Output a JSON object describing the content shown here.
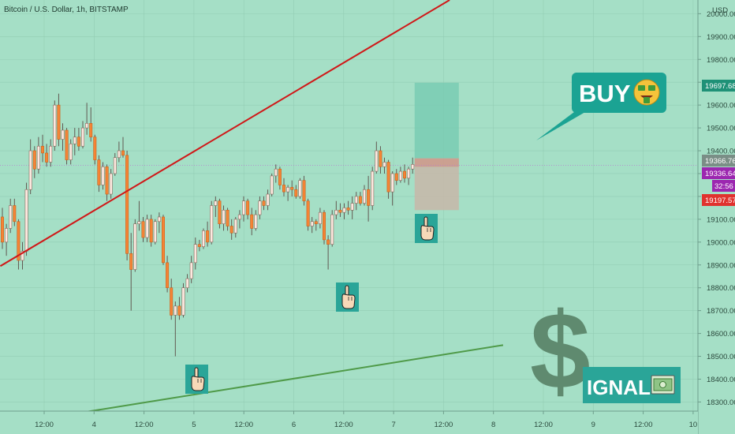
{
  "chart_title": "Bitcoin / U.S. Dollar, 1h, BITSTAMP",
  "currency_label": "USD",
  "price_tags": {
    "target": "19697.68",
    "last": "19366.76",
    "current": "19336.64",
    "countdown": "32:56",
    "stop": "19197.57"
  },
  "buy_bubble": {
    "text": "BUY"
  },
  "signal_badge": {
    "dollar": "$",
    "text": "IGNAL"
  },
  "colors": {
    "background": "#a5dfc6",
    "up_candle": "#fde8df",
    "down_candle": "#f58435",
    "resistance_line": "#d01818",
    "support_line": "#4f9a48",
    "target_zone": "#74c9b0",
    "stop_zone": "#c7b7a8",
    "bubble": "#1ba393",
    "dollar_sign": "#5f8a6f",
    "tag_target": "#1f9177",
    "tag_last": "#7a8e86",
    "tag_current": "#9c27b0",
    "tag_stop": "#e0322e"
  },
  "annotations": [
    "pointing-hand-icon",
    "pointing-hand-icon",
    "pointing-hand-icon",
    "money-face-icon",
    "banknote-icon"
  ],
  "chart_data": {
    "type": "candlestick",
    "title": "Bitcoin / U.S. Dollar, 1h, BITSTAMP",
    "y_axis_label": "USD",
    "y_ticks": [
      "20000.00",
      "19900.00",
      "19800.00",
      "19700.00",
      "19600.00",
      "19500.00",
      "19400.00",
      "19300.00",
      "19200.00",
      "19100.00",
      "19000.00",
      "18900.00",
      "18800.00",
      "18700.00",
      "18600.00",
      "18500.00",
      "18400.00",
      "18300.00"
    ],
    "x_ticks": [
      "12:00",
      "4",
      "12:00",
      "5",
      "12:00",
      "6",
      "12:00",
      "7",
      "12:00",
      "8",
      "12:00",
      "9",
      "12:00",
      "10"
    ],
    "ylim": [
      18260,
      20060
    ],
    "candles": [
      {
        "o": 19110,
        "h": 19150,
        "l": 18970,
        "c": 19000
      },
      {
        "o": 19000,
        "h": 19080,
        "l": 18940,
        "c": 19060
      },
      {
        "o": 19060,
        "h": 19190,
        "l": 19040,
        "c": 19160
      },
      {
        "o": 19160,
        "h": 19190,
        "l": 19070,
        "c": 19090
      },
      {
        "o": 19090,
        "h": 19100,
        "l": 18880,
        "c": 18920
      },
      {
        "o": 18920,
        "h": 19000,
        "l": 18880,
        "c": 18960
      },
      {
        "o": 18960,
        "h": 19260,
        "l": 18940,
        "c": 19230
      },
      {
        "o": 19230,
        "h": 19450,
        "l": 19210,
        "c": 19400
      },
      {
        "o": 19400,
        "h": 19420,
        "l": 19280,
        "c": 19320
      },
      {
        "o": 19320,
        "h": 19460,
        "l": 19300,
        "c": 19420
      },
      {
        "o": 19420,
        "h": 19470,
        "l": 19350,
        "c": 19390
      },
      {
        "o": 19390,
        "h": 19430,
        "l": 19330,
        "c": 19350
      },
      {
        "o": 19350,
        "h": 19450,
        "l": 19330,
        "c": 19420
      },
      {
        "o": 19420,
        "h": 19620,
        "l": 19400,
        "c": 19600
      },
      {
        "o": 19600,
        "h": 19650,
        "l": 19420,
        "c": 19450
      },
      {
        "o": 19450,
        "h": 19520,
        "l": 19400,
        "c": 19490
      },
      {
        "o": 19490,
        "h": 19500,
        "l": 19340,
        "c": 19360
      },
      {
        "o": 19360,
        "h": 19450,
        "l": 19340,
        "c": 19430
      },
      {
        "o": 19430,
        "h": 19500,
        "l": 19380,
        "c": 19460
      },
      {
        "o": 19460,
        "h": 19500,
        "l": 19400,
        "c": 19420
      },
      {
        "o": 19420,
        "h": 19530,
        "l": 19410,
        "c": 19500
      },
      {
        "o": 19500,
        "h": 19610,
        "l": 19470,
        "c": 19520
      },
      {
        "o": 19520,
        "h": 19590,
        "l": 19440,
        "c": 19460
      },
      {
        "o": 19460,
        "h": 19470,
        "l": 19340,
        "c": 19360
      },
      {
        "o": 19360,
        "h": 19380,
        "l": 19220,
        "c": 19250
      },
      {
        "o": 19250,
        "h": 19350,
        "l": 19230,
        "c": 19330
      },
      {
        "o": 19330,
        "h": 19340,
        "l": 19180,
        "c": 19210
      },
      {
        "o": 19210,
        "h": 19320,
        "l": 19190,
        "c": 19300
      },
      {
        "o": 19300,
        "h": 19390,
        "l": 19290,
        "c": 19370
      },
      {
        "o": 19370,
        "h": 19440,
        "l": 19350,
        "c": 19400
      },
      {
        "o": 19400,
        "h": 19460,
        "l": 19370,
        "c": 19380
      },
      {
        "o": 19380,
        "h": 19400,
        "l": 18920,
        "c": 18950
      },
      {
        "o": 18950,
        "h": 19040,
        "l": 18700,
        "c": 18880
      },
      {
        "o": 18880,
        "h": 19100,
        "l": 18870,
        "c": 19080
      },
      {
        "o": 19080,
        "h": 19180,
        "l": 19050,
        "c": 19090
      },
      {
        "o": 19090,
        "h": 19110,
        "l": 19000,
        "c": 19020
      },
      {
        "o": 19020,
        "h": 19120,
        "l": 19000,
        "c": 19100
      },
      {
        "o": 19100,
        "h": 19120,
        "l": 18980,
        "c": 19000
      },
      {
        "o": 19000,
        "h": 19100,
        "l": 18990,
        "c": 19090
      },
      {
        "o": 19090,
        "h": 19130,
        "l": 19040,
        "c": 19110
      },
      {
        "o": 19110,
        "h": 19120,
        "l": 18900,
        "c": 18910
      },
      {
        "o": 18910,
        "h": 18940,
        "l": 18780,
        "c": 18800
      },
      {
        "o": 18800,
        "h": 18840,
        "l": 18660,
        "c": 18680
      },
      {
        "o": 18680,
        "h": 18740,
        "l": 18500,
        "c": 18720
      },
      {
        "o": 18720,
        "h": 18760,
        "l": 18660,
        "c": 18680
      },
      {
        "o": 18680,
        "h": 18820,
        "l": 18670,
        "c": 18800
      },
      {
        "o": 18800,
        "h": 18860,
        "l": 18780,
        "c": 18840
      },
      {
        "o": 18840,
        "h": 18940,
        "l": 18820,
        "c": 18910
      },
      {
        "o": 18910,
        "h": 19020,
        "l": 18880,
        "c": 18990
      },
      {
        "o": 18990,
        "h": 19010,
        "l": 18960,
        "c": 18980
      },
      {
        "o": 18980,
        "h": 19060,
        "l": 18970,
        "c": 19050
      },
      {
        "o": 19050,
        "h": 19090,
        "l": 18980,
        "c": 19000
      },
      {
        "o": 19000,
        "h": 19180,
        "l": 18990,
        "c": 19160
      },
      {
        "o": 19160,
        "h": 19200,
        "l": 19110,
        "c": 19180
      },
      {
        "o": 19180,
        "h": 19190,
        "l": 19060,
        "c": 19080
      },
      {
        "o": 19080,
        "h": 19160,
        "l": 19050,
        "c": 19140
      },
      {
        "o": 19140,
        "h": 19150,
        "l": 19050,
        "c": 19070
      },
      {
        "o": 19070,
        "h": 19100,
        "l": 19010,
        "c": 19040
      },
      {
        "o": 19040,
        "h": 19110,
        "l": 19020,
        "c": 19100
      },
      {
        "o": 19100,
        "h": 19140,
        "l": 19060,
        "c": 19120
      },
      {
        "o": 19120,
        "h": 19200,
        "l": 19090,
        "c": 19180
      },
      {
        "o": 19180,
        "h": 19190,
        "l": 19100,
        "c": 19120
      },
      {
        "o": 19120,
        "h": 19150,
        "l": 19030,
        "c": 19060
      },
      {
        "o": 19060,
        "h": 19140,
        "l": 19050,
        "c": 19120
      },
      {
        "o": 19120,
        "h": 19200,
        "l": 19100,
        "c": 19180
      },
      {
        "o": 19180,
        "h": 19200,
        "l": 19140,
        "c": 19160
      },
      {
        "o": 19160,
        "h": 19230,
        "l": 19140,
        "c": 19210
      },
      {
        "o": 19210,
        "h": 19300,
        "l": 19200,
        "c": 19290
      },
      {
        "o": 19290,
        "h": 19340,
        "l": 19260,
        "c": 19320
      },
      {
        "o": 19320,
        "h": 19330,
        "l": 19230,
        "c": 19250
      },
      {
        "o": 19250,
        "h": 19280,
        "l": 19200,
        "c": 19220
      },
      {
        "o": 19220,
        "h": 19250,
        "l": 19180,
        "c": 19240
      },
      {
        "o": 19240,
        "h": 19270,
        "l": 19200,
        "c": 19230
      },
      {
        "o": 19230,
        "h": 19250,
        "l": 19190,
        "c": 19200
      },
      {
        "o": 19200,
        "h": 19280,
        "l": 19190,
        "c": 19270
      },
      {
        "o": 19270,
        "h": 19290,
        "l": 19160,
        "c": 19180
      },
      {
        "o": 19180,
        "h": 19190,
        "l": 19050,
        "c": 19070
      },
      {
        "o": 19070,
        "h": 19110,
        "l": 19040,
        "c": 19090
      },
      {
        "o": 19090,
        "h": 19100,
        "l": 19050,
        "c": 19080
      },
      {
        "o": 19080,
        "h": 19150,
        "l": 19060,
        "c": 19130
      },
      {
        "o": 19130,
        "h": 19140,
        "l": 18990,
        "c": 19010
      },
      {
        "o": 19010,
        "h": 19030,
        "l": 18880,
        "c": 18990
      },
      {
        "o": 18990,
        "h": 19140,
        "l": 18980,
        "c": 19120
      },
      {
        "o": 19120,
        "h": 19180,
        "l": 19100,
        "c": 19140
      },
      {
        "o": 19140,
        "h": 19170,
        "l": 19110,
        "c": 19130
      },
      {
        "o": 19130,
        "h": 19170,
        "l": 19100,
        "c": 19150
      },
      {
        "o": 19150,
        "h": 19180,
        "l": 19120,
        "c": 19140
      },
      {
        "o": 19140,
        "h": 19200,
        "l": 19100,
        "c": 19170
      },
      {
        "o": 19170,
        "h": 19220,
        "l": 19140,
        "c": 19200
      },
      {
        "o": 19200,
        "h": 19220,
        "l": 19160,
        "c": 19170
      },
      {
        "o": 19170,
        "h": 19250,
        "l": 19160,
        "c": 19230
      },
      {
        "o": 19230,
        "h": 19290,
        "l": 19090,
        "c": 19160
      },
      {
        "o": 19160,
        "h": 19330,
        "l": 19140,
        "c": 19310
      },
      {
        "o": 19310,
        "h": 19440,
        "l": 19300,
        "c": 19400
      },
      {
        "o": 19400,
        "h": 19420,
        "l": 19300,
        "c": 19330
      },
      {
        "o": 19330,
        "h": 19370,
        "l": 19300,
        "c": 19350
      },
      {
        "o": 19350,
        "h": 19360,
        "l": 19190,
        "c": 19220
      },
      {
        "o": 19220,
        "h": 19310,
        "l": 19160,
        "c": 19300
      },
      {
        "o": 19300,
        "h": 19320,
        "l": 19250,
        "c": 19270
      },
      {
        "o": 19270,
        "h": 19330,
        "l": 19260,
        "c": 19310
      },
      {
        "o": 19310,
        "h": 19340,
        "l": 19260,
        "c": 19280
      },
      {
        "o": 19280,
        "h": 19330,
        "l": 19250,
        "c": 19320
      },
      {
        "o": 19320,
        "h": 19370,
        "l": 19300,
        "c": 19340
      }
    ],
    "resistance_line": {
      "from": [
        -0.5,
        18895
      ],
      "to": [
        111.2,
        20060
      ]
    },
    "support_line": {
      "from": [
        19.5,
        18253
      ],
      "to": [
        124.5,
        18549
      ]
    },
    "target_level": 19697.68,
    "entry_level": 19366.76,
    "current_level": 19336.64,
    "stop_level": 19197.57,
    "zone_right_index": 113.5,
    "zone_stop_bottom": 19140
  }
}
